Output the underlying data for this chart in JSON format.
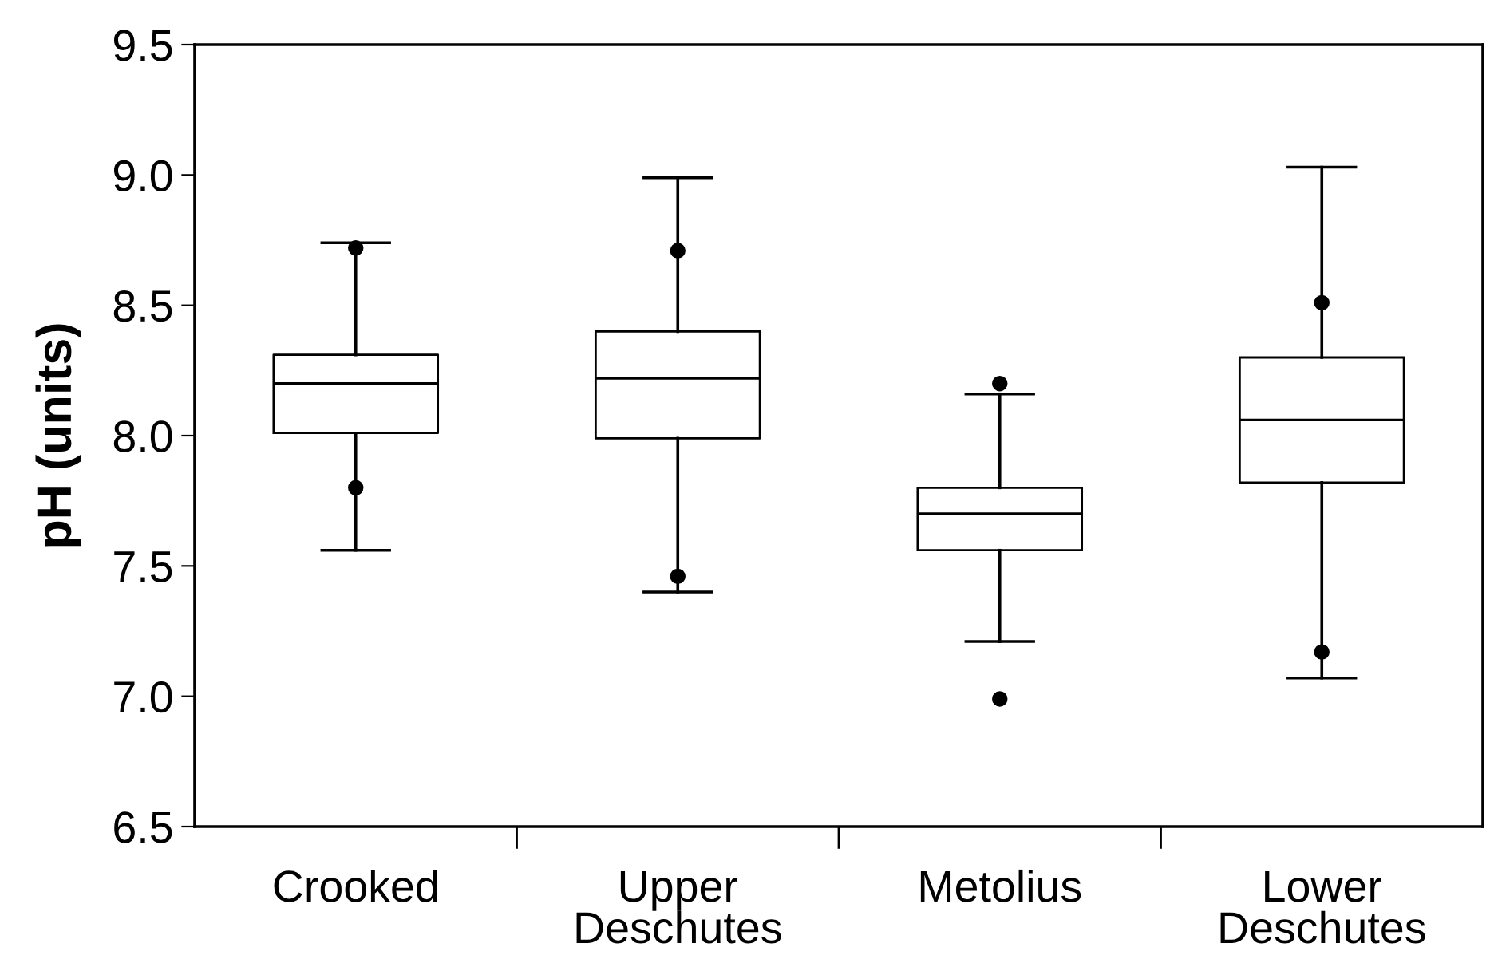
{
  "chart_data": {
    "type": "box",
    "ylabel": "pH (units)",
    "categories": [
      "Crooked",
      "Upper\nDeschutes",
      "Metolius",
      "Lower\nDeschutes"
    ],
    "boxes": [
      {
        "low": 7.56,
        "q1": 8.01,
        "median": 8.2,
        "q3": 8.31,
        "high": 8.74,
        "outliers": [
          8.72,
          7.8
        ]
      },
      {
        "low": 7.4,
        "q1": 7.99,
        "median": 8.22,
        "q3": 8.4,
        "high": 8.99,
        "outliers": [
          8.71,
          7.46
        ]
      },
      {
        "low": 7.21,
        "q1": 7.56,
        "median": 7.7,
        "q3": 7.8,
        "high": 8.16,
        "outliers": [
          8.2,
          6.99
        ]
      },
      {
        "low": 7.07,
        "q1": 7.82,
        "median": 8.06,
        "q3": 8.3,
        "high": 9.03,
        "outliers": [
          8.51,
          7.17
        ]
      }
    ],
    "ylim": [
      6.5,
      9.5
    ],
    "yticks": [
      {
        "value": 6.5,
        "label": "6.5"
      },
      {
        "value": 7,
        "label": "7.0"
      },
      {
        "value": 7.5,
        "label": "7.5"
      },
      {
        "value": 8,
        "label": "8.0"
      },
      {
        "value": 8.5,
        "label": "8.5"
      },
      {
        "value": 9,
        "label": "9.0"
      },
      {
        "value": 9.5,
        "label": "9.5"
      }
    ],
    "grid": false,
    "legend": false
  }
}
